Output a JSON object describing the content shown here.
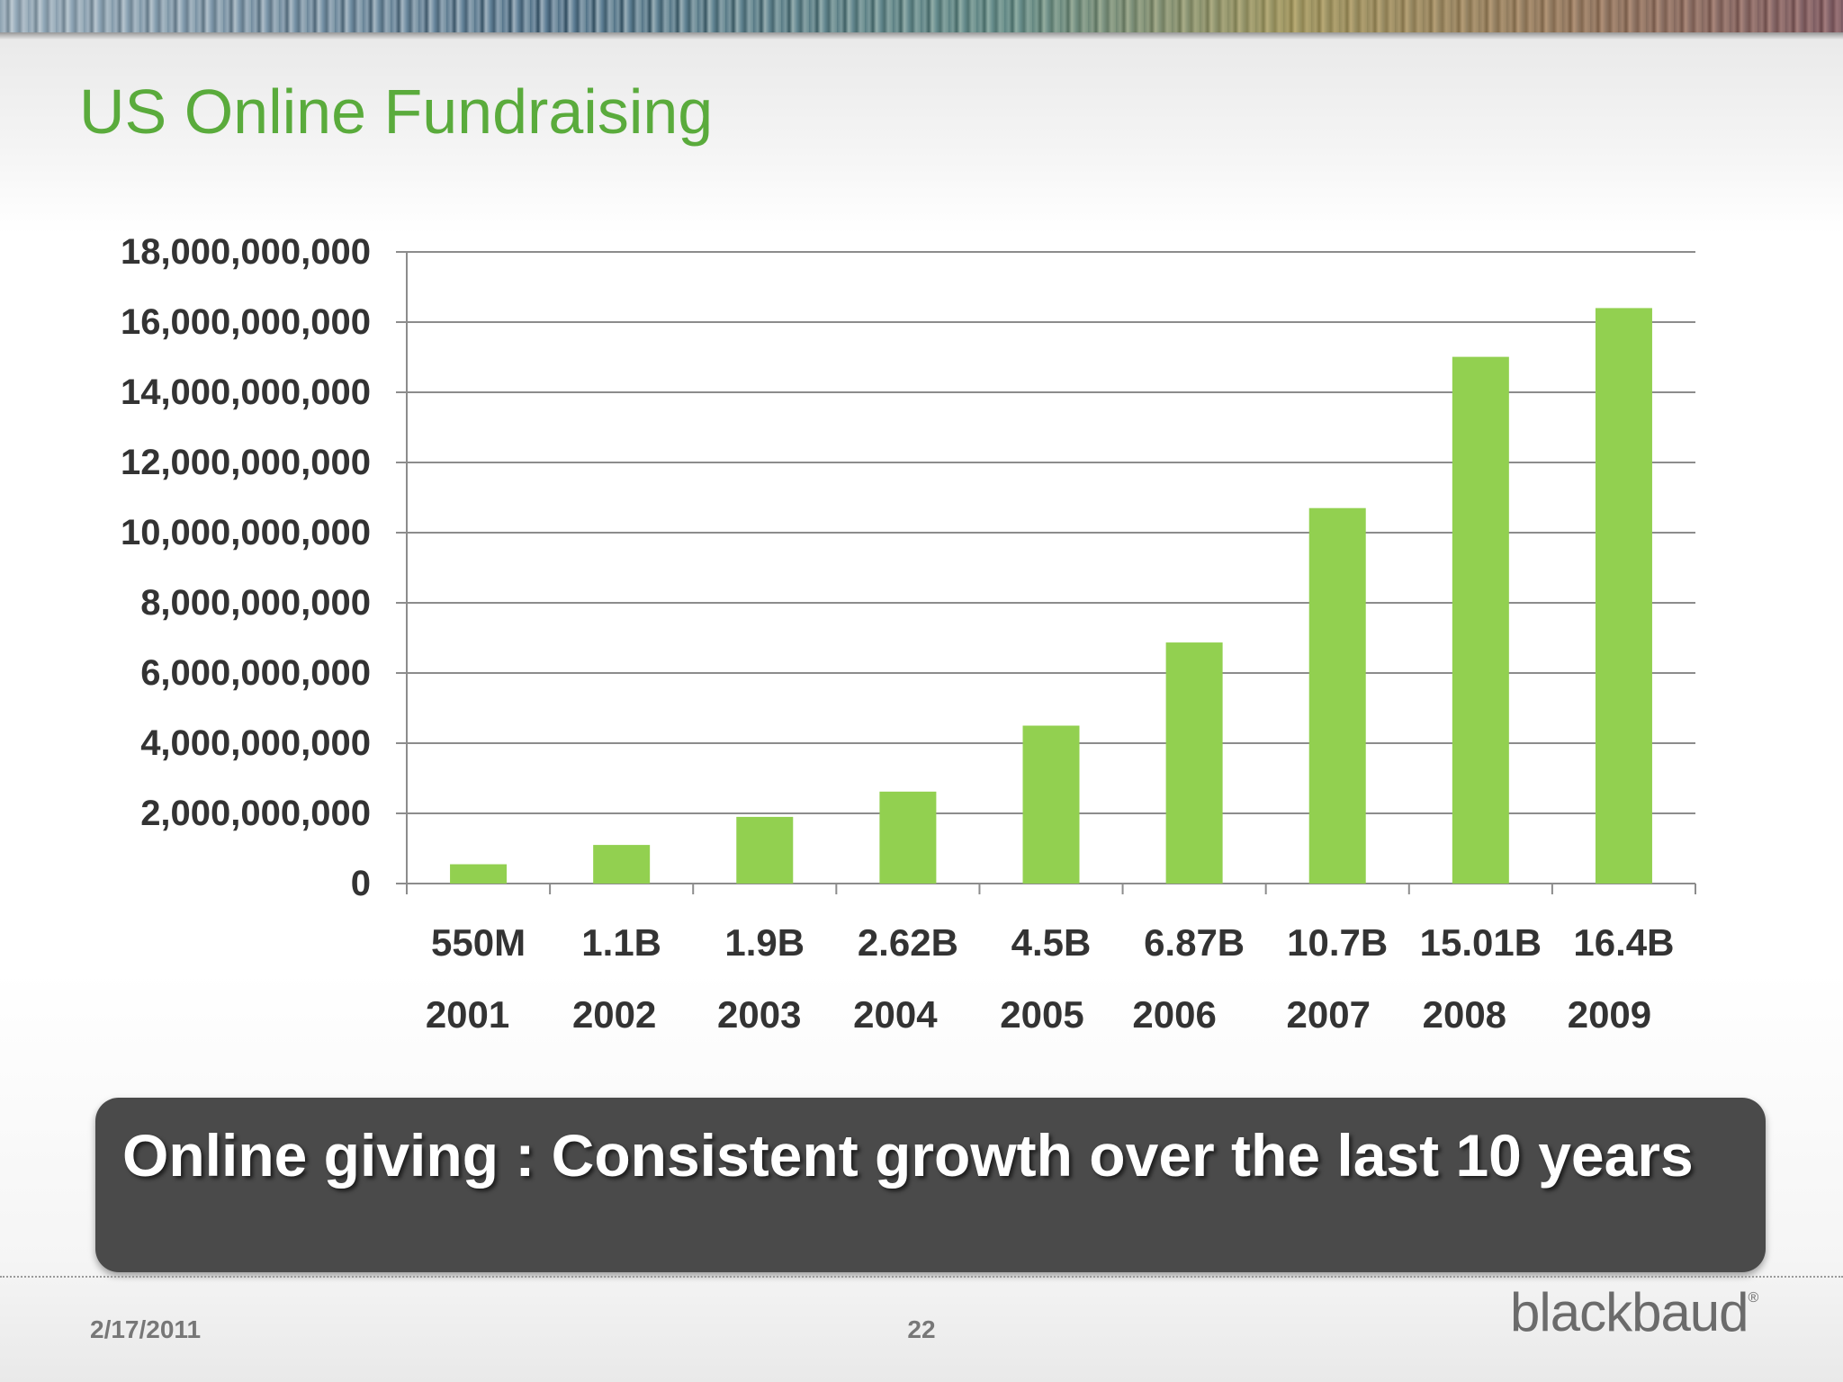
{
  "slide": {
    "title": "US Online Fundraising",
    "callout": "Online giving : Consistent growth over the last 10 years",
    "footer_date": "2/17/2011",
    "page_number": "22",
    "logo_text": "blackbaud",
    "logo_mark": "®"
  },
  "colors": {
    "title": "#5aab3c",
    "bar": "#92d050",
    "grid": "#8c8c8c"
  },
  "chart_data": {
    "type": "bar",
    "title": "",
    "xlabel": "",
    "ylabel": "",
    "ylim": [
      0,
      18000000000
    ],
    "y_ticks": [
      0,
      2000000000,
      4000000000,
      6000000000,
      8000000000,
      10000000000,
      12000000000,
      14000000000,
      16000000000,
      18000000000
    ],
    "y_tick_labels": [
      "0",
      "2,000,000,000",
      "4,000,000,000",
      "6,000,000,000",
      "8,000,000,000",
      "10,000,000,000",
      "12,000,000,000",
      "14,000,000,000",
      "16,000,000,000",
      "18,000,000,000"
    ],
    "categories": [
      "2001",
      "2002",
      "2003",
      "2004",
      "2005",
      "2006",
      "2007",
      "2008",
      "2009"
    ],
    "value_labels": [
      "550M",
      "1.1B",
      "1.9B",
      "2.62B",
      "4.5B",
      "6.87B",
      "10.7B",
      "15.01B",
      "16.4B"
    ],
    "values": [
      550000000,
      1100000000,
      1900000000,
      2620000000,
      4500000000,
      6870000000,
      10700000000,
      15010000000,
      16400000000
    ],
    "grid": true,
    "legend": "none"
  }
}
